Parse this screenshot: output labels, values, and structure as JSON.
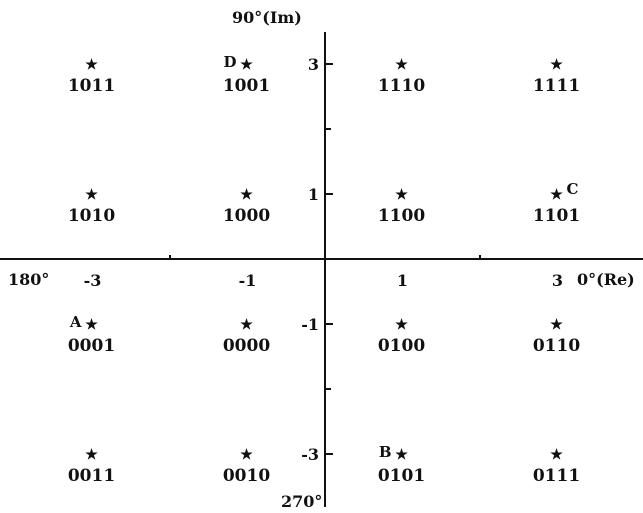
{
  "diagram": {
    "y_axis_title": "90°(Im)",
    "x_axis_title": "0°(Re)",
    "angle_left": "180°",
    "angle_bottom": "270°",
    "x_ticks": [
      {
        "value": -3,
        "label": "-3"
      },
      {
        "value": -1,
        "label": "-1"
      },
      {
        "value": 1,
        "label": "1"
      },
      {
        "value": 3,
        "label": "3"
      }
    ],
    "y_ticks": [
      {
        "value": 3,
        "label": "3"
      },
      {
        "value": 1,
        "label": "1"
      },
      {
        "value": -1,
        "label": "-1"
      },
      {
        "value": -3,
        "label": "-3"
      }
    ],
    "points": [
      {
        "re": -3,
        "im": 3,
        "code": "1011",
        "tag": ""
      },
      {
        "re": -1,
        "im": 3,
        "code": "1001",
        "tag": "D"
      },
      {
        "re": 1,
        "im": 3,
        "code": "1110",
        "tag": ""
      },
      {
        "re": 3,
        "im": 3,
        "code": "1111",
        "tag": ""
      },
      {
        "re": -3,
        "im": 1,
        "code": "1010",
        "tag": ""
      },
      {
        "re": -1,
        "im": 1,
        "code": "1000",
        "tag": ""
      },
      {
        "re": 1,
        "im": 1,
        "code": "1100",
        "tag": ""
      },
      {
        "re": 3,
        "im": 1,
        "code": "1101",
        "tag": "C"
      },
      {
        "re": -3,
        "im": -1,
        "code": "0001",
        "tag": "A"
      },
      {
        "re": -1,
        "im": -1,
        "code": "0000",
        "tag": ""
      },
      {
        "re": 1,
        "im": -1,
        "code": "0100",
        "tag": ""
      },
      {
        "re": 3,
        "im": -1,
        "code": "0110",
        "tag": ""
      },
      {
        "re": -3,
        "im": -3,
        "code": "0011",
        "tag": ""
      },
      {
        "re": -1,
        "im": -3,
        "code": "0010",
        "tag": ""
      },
      {
        "re": 1,
        "im": -3,
        "code": "0101",
        "tag": "B"
      },
      {
        "re": 3,
        "im": -3,
        "code": "0111",
        "tag": ""
      }
    ]
  }
}
